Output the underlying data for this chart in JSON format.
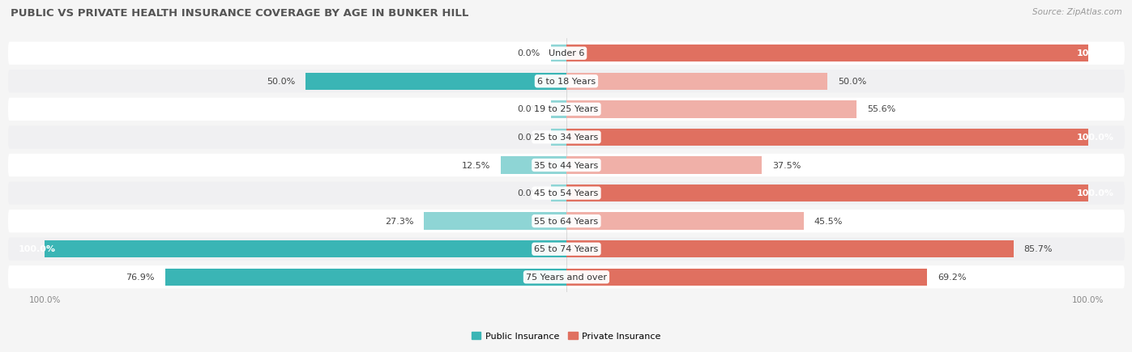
{
  "title": "PUBLIC VS PRIVATE HEALTH INSURANCE COVERAGE BY AGE IN BUNKER HILL",
  "source": "Source: ZipAtlas.com",
  "categories": [
    "Under 6",
    "6 to 18 Years",
    "19 to 25 Years",
    "25 to 34 Years",
    "35 to 44 Years",
    "45 to 54 Years",
    "55 to 64 Years",
    "65 to 74 Years",
    "75 Years and over"
  ],
  "public_values": [
    0.0,
    50.0,
    0.0,
    0.0,
    12.5,
    0.0,
    27.3,
    100.0,
    76.9
  ],
  "private_values": [
    100.0,
    50.0,
    55.6,
    100.0,
    37.5,
    100.0,
    45.5,
    85.7,
    69.2
  ],
  "public_color_dark": "#3ab5b5",
  "public_color_light": "#8ed5d5",
  "private_color_dark": "#e07060",
  "private_color_light": "#f0b0a8",
  "row_color_odd": "#f0f0f2",
  "row_color_even": "#ffffff",
  "fig_bg": "#f5f5f5",
  "label_fontsize": 8.0,
  "title_fontsize": 9.5,
  "source_fontsize": 7.5,
  "axis_label_fontsize": 7.5,
  "cat_fontsize": 8.0
}
